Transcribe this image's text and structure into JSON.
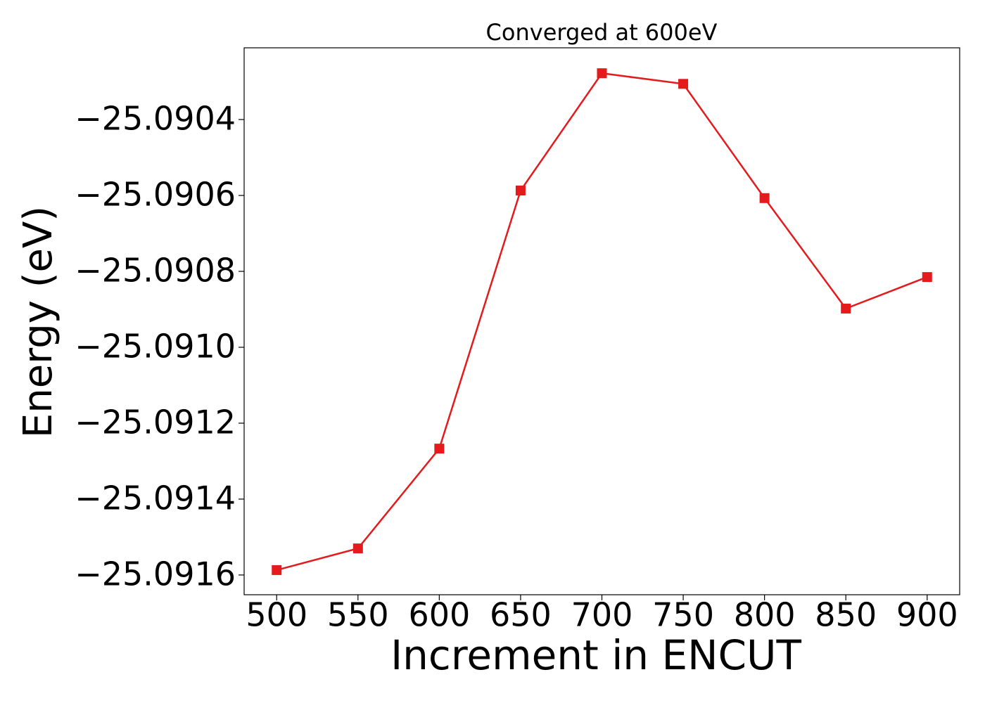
{
  "chart_data": {
    "type": "line",
    "title": "Converged at 600eV",
    "x_label": "Increment in ENCUT",
    "y_label": "Energy (eV)",
    "x": [
      500,
      550,
      600,
      650,
      700,
      750,
      800,
      850,
      900
    ],
    "series": [
      {
        "name": "Energy",
        "color": "#e41a1c",
        "values": [
          -25.091587,
          -25.09153,
          -25.091267,
          -25.090587,
          -25.090278,
          -25.090306,
          -25.090607,
          -25.090898,
          -25.090815
        ]
      }
    ],
    "xlim": [
      480,
      920
    ],
    "xticks": [
      500,
      550,
      600,
      650,
      700,
      750,
      800,
      850,
      900
    ],
    "ylim": [
      -25.091652,
      -25.090211
    ],
    "yticks": [
      {
        "value": -25.0916,
        "label": "−25.0916"
      },
      {
        "value": -25.0914,
        "label": "−25.0914"
      },
      {
        "value": -25.0912,
        "label": "−25.0912"
      },
      {
        "value": -25.091,
        "label": "−25.0910"
      },
      {
        "value": -25.0908,
        "label": "−25.0908"
      },
      {
        "value": -25.0906,
        "label": "−25.0906"
      },
      {
        "value": -25.0904,
        "label": "−25.0904"
      }
    ],
    "grid": false
  }
}
